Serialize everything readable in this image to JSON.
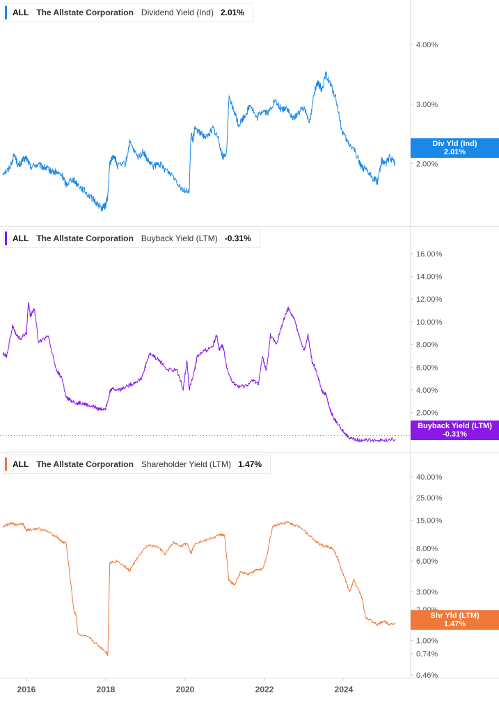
{
  "x_axis": {
    "labels": [
      "2016",
      "2018",
      "2020",
      "2022",
      "2024"
    ]
  },
  "chart_data": [
    {
      "type": "line",
      "ticker": "ALL",
      "company": "The Allstate Corporation",
      "metric": "Dividend Yield (Ind)",
      "current_value": "2.01%",
      "badge_label": "Div Yld (Ind)",
      "badge_value": "2.01%",
      "color": "#1b87e6",
      "scale": "linear",
      "ylim": [
        1.0,
        4.4
      ],
      "yticks": [
        {
          "v": 4.0,
          "label": "4.00%"
        },
        {
          "v": 3.0,
          "label": "3.00%"
        },
        {
          "v": 2.0,
          "label": "2.00%"
        }
      ],
      "x": [
        2015.4,
        2015.55,
        2015.7,
        2015.8,
        2015.9,
        2016.0,
        2016.1,
        2016.25,
        2016.4,
        2016.5,
        2016.6,
        2016.75,
        2016.9,
        2017.0,
        2017.15,
        2017.3,
        2017.45,
        2017.6,
        2017.75,
        2017.9,
        2018.0,
        2018.05,
        2018.1,
        2018.2,
        2018.3,
        2018.5,
        2018.6,
        2018.8,
        2018.95,
        2019.05,
        2019.2,
        2019.35,
        2019.5,
        2019.7,
        2019.9,
        2020.1,
        2020.15,
        2020.2,
        2020.25,
        2020.4,
        2020.55,
        2020.7,
        2020.85,
        2020.95,
        2021.05,
        2021.1,
        2021.25,
        2021.35,
        2021.5,
        2021.65,
        2021.8,
        2021.95,
        2022.1,
        2022.25,
        2022.45,
        2022.55,
        2022.7,
        2022.85,
        2023.0,
        2023.15,
        2023.25,
        2023.35,
        2023.45,
        2023.55,
        2023.65,
        2023.8,
        2023.95,
        2024.1,
        2024.25,
        2024.35,
        2024.45,
        2024.6,
        2024.75,
        2024.85,
        2024.95,
        2025.05,
        2025.15,
        2025.3
      ],
      "values": [
        1.85,
        1.9,
        2.15,
        1.95,
        2.05,
        2.1,
        1.95,
        1.98,
        1.95,
        1.92,
        1.88,
        1.85,
        1.8,
        1.65,
        1.75,
        1.65,
        1.55,
        1.45,
        1.35,
        1.25,
        1.3,
        1.45,
        2.0,
        2.15,
        1.95,
        2.0,
        2.35,
        2.1,
        2.2,
        2.05,
        1.95,
        2.0,
        1.9,
        1.8,
        1.6,
        1.5,
        2.5,
        2.4,
        2.6,
        2.5,
        2.45,
        2.6,
        2.4,
        2.1,
        2.2,
        3.1,
        2.85,
        2.65,
        2.8,
        3.0,
        2.75,
        2.9,
        2.85,
        3.05,
        2.9,
        2.95,
        2.75,
        2.85,
        2.95,
        2.7,
        3.2,
        3.35,
        3.25,
        3.5,
        3.35,
        3.1,
        2.55,
        2.35,
        2.25,
        2.1,
        1.95,
        1.85,
        1.75,
        1.7,
        2.05,
        2.0,
        2.1,
        2.01
      ]
    },
    {
      "type": "line",
      "ticker": "ALL",
      "company": "The Allstate Corporation",
      "metric": "Buyback Yield (LTM)",
      "current_value": "-0.31%",
      "badge_label": "Buyback Yield (LTM)",
      "badge_value": "-0.31%",
      "color": "#8a18e8",
      "scale": "linear",
      "ylim": [
        -1.2,
        16.6
      ],
      "yticks": [
        {
          "v": 16,
          "label": "16.00%"
        },
        {
          "v": 14,
          "label": "14.00%"
        },
        {
          "v": 12,
          "label": "12.00%"
        },
        {
          "v": 10,
          "label": "10.00%"
        },
        {
          "v": 8,
          "label": "8.00%"
        },
        {
          "v": 6,
          "label": "6.00%"
        },
        {
          "v": 4,
          "label": "4.00%"
        },
        {
          "v": 2,
          "label": "2.00%"
        }
      ],
      "x": [
        2015.4,
        2015.5,
        2015.65,
        2015.75,
        2015.85,
        2016.0,
        2016.05,
        2016.1,
        2016.2,
        2016.3,
        2016.4,
        2016.55,
        2016.75,
        2016.9,
        2017.0,
        2017.1,
        2017.3,
        2017.35,
        2017.5,
        2017.7,
        2017.85,
        2018.0,
        2018.1,
        2018.15,
        2018.35,
        2018.5,
        2018.7,
        2018.9,
        2019.1,
        2019.2,
        2019.35,
        2019.55,
        2019.8,
        2019.95,
        2020.05,
        2020.1,
        2020.25,
        2020.3,
        2020.45,
        2020.55,
        2020.7,
        2020.8,
        2020.85,
        2020.95,
        2021.05,
        2021.2,
        2021.35,
        2021.5,
        2021.7,
        2021.85,
        2021.95,
        2022.05,
        2022.15,
        2022.3,
        2022.45,
        2022.6,
        2022.75,
        2022.85,
        2023.0,
        2023.1,
        2023.2,
        2023.3,
        2023.45,
        2023.55,
        2023.65,
        2023.75,
        2023.85,
        2024.0,
        2024.15,
        2024.3,
        2024.5,
        2024.75,
        2025.0,
        2025.3
      ],
      "values": [
        7.2,
        7.0,
        9.6,
        8.8,
        8.5,
        9.0,
        11.7,
        10.5,
        11.2,
        8.3,
        8.4,
        8.7,
        5.8,
        5.0,
        3.3,
        3.1,
        2.8,
        2.9,
        2.7,
        2.5,
        2.3,
        2.4,
        3.8,
        4.1,
        4.0,
        4.3,
        4.6,
        5.0,
        7.2,
        7.0,
        6.6,
        5.8,
        5.7,
        4.1,
        6.6,
        4.0,
        5.9,
        6.9,
        7.4,
        7.5,
        7.9,
        8.9,
        7.6,
        7.9,
        6.0,
        4.6,
        4.3,
        4.3,
        4.8,
        4.6,
        6.9,
        5.6,
        8.8,
        8.0,
        9.8,
        11.2,
        10.2,
        9.1,
        7.4,
        8.8,
        6.5,
        5.8,
        3.9,
        3.6,
        2.3,
        1.5,
        1.0,
        0.3,
        -0.2,
        -0.4,
        -0.45,
        -0.4,
        -0.45,
        -0.31
      ]
    },
    {
      "type": "line",
      "ticker": "ALL",
      "company": "The Allstate Corporation",
      "metric": "Shareholder Yield (LTM)",
      "current_value": "1.47%",
      "badge_label": "Shr Yld (LTM)",
      "badge_value": "1.47%",
      "color": "#f07838",
      "scale": "log",
      "ylim": [
        0.46,
        44
      ],
      "yticks": [
        {
          "v": 40,
          "label": "40.00%"
        },
        {
          "v": 25,
          "label": "25.00%"
        },
        {
          "v": 15,
          "label": "15.00%"
        },
        {
          "v": 8,
          "label": "8.00%"
        },
        {
          "v": 6,
          "label": "6.00%"
        },
        {
          "v": 3,
          "label": "3.00%"
        },
        {
          "v": 2,
          "label": "2.00%"
        },
        {
          "v": 1,
          "label": "1.00%"
        },
        {
          "v": 0.74,
          "label": "0.74%"
        },
        {
          "v": 0.46,
          "label": "0.46%"
        }
      ],
      "x": [
        2015.4,
        2015.6,
        2015.75,
        2015.9,
        2016.0,
        2016.1,
        2016.3,
        2016.5,
        2016.75,
        2016.9,
        2017.0,
        2017.2,
        2017.25,
        2017.3,
        2017.6,
        2017.8,
        2018.0,
        2018.05,
        2018.1,
        2018.3,
        2018.5,
        2018.6,
        2018.8,
        2019.05,
        2019.3,
        2019.5,
        2019.7,
        2019.9,
        2020.05,
        2020.15,
        2020.25,
        2020.5,
        2020.75,
        2020.9,
        2021.0,
        2021.1,
        2021.25,
        2021.4,
        2021.6,
        2021.8,
        2021.95,
        2022.05,
        2022.2,
        2022.4,
        2022.6,
        2022.75,
        2022.9,
        2023.1,
        2023.3,
        2023.45,
        2023.6,
        2023.75,
        2023.85,
        2023.95,
        2024.05,
        2024.15,
        2024.25,
        2024.45,
        2024.55,
        2024.7,
        2024.85,
        2025.0,
        2025.15,
        2025.3
      ],
      "values": [
        13,
        14,
        13.5,
        14.2,
        12,
        12.2,
        12.5,
        11.8,
        10.5,
        9.2,
        9.0,
        1.9,
        1.8,
        1.15,
        1.05,
        0.9,
        0.78,
        0.72,
        5.8,
        6.0,
        5.2,
        4.8,
        6.5,
        8.5,
        8.3,
        7.0,
        9.1,
        8.4,
        9.0,
        7.2,
        9.0,
        9.5,
        10.3,
        11.0,
        10.5,
        3.9,
        3.5,
        4.7,
        4.5,
        4.9,
        5.0,
        6.4,
        13.0,
        14.0,
        14.3,
        13.5,
        13.0,
        11.0,
        9.3,
        8.5,
        8.3,
        7.8,
        6.3,
        4.8,
        3.8,
        3.0,
        3.9,
        2.7,
        1.7,
        1.55,
        1.42,
        1.55,
        1.45,
        1.47
      ]
    }
  ]
}
